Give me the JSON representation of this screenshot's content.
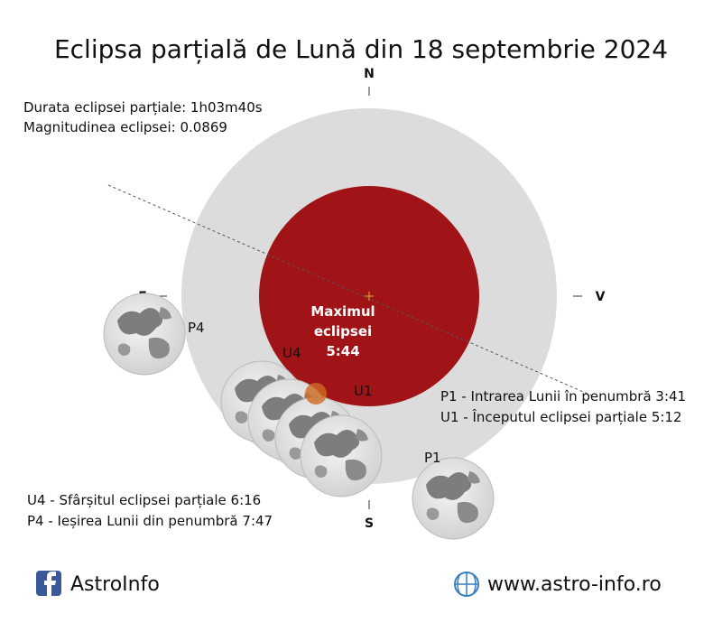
{
  "title": "Eclipsa parțială de Lună din 18 septembrie 2024",
  "info": [
    "Durata eclipsei parțiale: 1h03m40s",
    "Magnitudinea eclipsei: 0.0869"
  ],
  "compass": {
    "north": "N",
    "east": "E",
    "west": "V",
    "south": "S"
  },
  "maximum": [
    "Maximul",
    "eclipsei",
    "5:44"
  ],
  "moon_labels": {
    "p4": "P4",
    "u4": "U4",
    "u1": "U1",
    "p1": "P1"
  },
  "legend_right": [
    "P1 - Intrarea Lunii în penumbră 3:41",
    "U1 - Începutul eclipsei parțiale 5:12"
  ],
  "legend_left": [
    "U4 - Sfârșitul eclipsei parțiale 6:16",
    "P4 - Ieșirea Lunii din penumbră 7:47"
  ],
  "footer": {
    "facebook": "AstroInfo",
    "website": "www.astro-info.ro"
  }
}
